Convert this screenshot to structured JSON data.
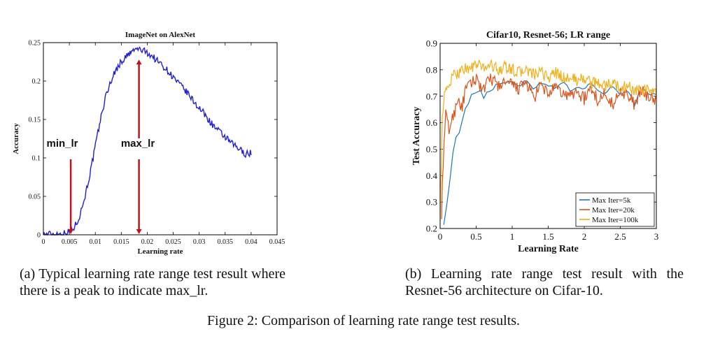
{
  "chart_data": [
    {
      "id": "a",
      "type": "line",
      "title": "ImageNet on AlexNet",
      "xlabel": "Learning rate",
      "ylabel": "Accuracy",
      "xlim": [
        0,
        0.045
      ],
      "ylim": [
        0,
        0.25
      ],
      "xticks": [
        "0",
        "0.005",
        "0.01",
        "0.015",
        "0.02",
        "0.025",
        "0.03",
        "0.035",
        "0.04",
        "0.045"
      ],
      "yticks": [
        "0",
        "0.05",
        "0.1",
        "0.15",
        "0.2",
        "0.25"
      ],
      "grid": false,
      "series": [
        {
          "color": "#1f1fd0",
          "x": [
            0,
            0.001,
            0.002,
            0.003,
            0.004,
            0.005,
            0.006,
            0.007,
            0.008,
            0.009,
            0.01,
            0.011,
            0.012,
            0.013,
            0.014,
            0.015,
            0.016,
            0.017,
            0.018,
            0.019,
            0.02,
            0.021,
            0.022,
            0.023,
            0.024,
            0.025,
            0.026,
            0.027,
            0.028,
            0.029,
            0.03,
            0.031,
            0.032,
            0.033,
            0.034,
            0.035,
            0.036,
            0.037,
            0.038,
            0.039,
            0.04
          ],
          "y": [
            0,
            0.001,
            0.001,
            0.001,
            0.002,
            0.004,
            0.01,
            0.025,
            0.05,
            0.08,
            0.115,
            0.15,
            0.18,
            0.2,
            0.215,
            0.225,
            0.232,
            0.238,
            0.242,
            0.24,
            0.237,
            0.232,
            0.226,
            0.22,
            0.213,
            0.205,
            0.197,
            0.19,
            0.182,
            0.173,
            0.165,
            0.157,
            0.148,
            0.14,
            0.133,
            0.127,
            0.12,
            0.115,
            0.11,
            0.105,
            0.107
          ]
        }
      ],
      "annotations": [
        {
          "label": "min_lr",
          "x": 0.005,
          "y_from": 0.1,
          "y_to": 0.0
        },
        {
          "label": "max_lr",
          "x": 0.018,
          "y_from": 0.1,
          "y_to": 0.0,
          "up_arrow_from": 0.1,
          "up_arrow_to": 0.228
        }
      ],
      "annotation_color": "#c0141b"
    },
    {
      "id": "b",
      "type": "line",
      "title": "Cifar10, Resnet-56; LR range",
      "xlabel": "Learning Rate",
      "ylabel": "Test Accuracy",
      "xlim": [
        0,
        3
      ],
      "ylim": [
        0.2,
        0.9
      ],
      "xticks": [
        "0",
        "0.5",
        "1",
        "1.5",
        "2",
        "2.5",
        "3"
      ],
      "yticks": [
        "0.2",
        "0.3",
        "0.4",
        "0.5",
        "0.6",
        "0.7",
        "0.8",
        "0.9"
      ],
      "grid": false,
      "legend_position": "bottom-right",
      "series": [
        {
          "name": "Max Iter=5k",
          "color": "#1f77b4",
          "x": [
            0.05,
            0.1,
            0.15,
            0.2,
            0.25,
            0.3,
            0.35,
            0.4,
            0.45,
            0.5,
            0.55,
            0.6,
            0.65,
            0.7,
            0.8,
            0.9,
            1.0,
            1.1,
            1.2,
            1.3,
            1.4,
            1.5,
            1.6,
            1.7,
            1.8,
            1.9,
            2.0,
            2.1,
            2.2,
            2.3,
            2.4,
            2.5,
            2.6,
            2.7,
            2.8,
            2.9,
            3.0
          ],
          "y": [
            0.22,
            0.3,
            0.42,
            0.54,
            0.55,
            0.6,
            0.65,
            0.67,
            0.72,
            0.71,
            0.73,
            0.69,
            0.72,
            0.72,
            0.75,
            0.75,
            0.76,
            0.74,
            0.76,
            0.73,
            0.75,
            0.74,
            0.73,
            0.76,
            0.72,
            0.74,
            0.73,
            0.75,
            0.72,
            0.71,
            0.74,
            0.71,
            0.72,
            0.67,
            0.73,
            0.7,
            0.71
          ]
        },
        {
          "name": "Max Iter=20k",
          "color": "#d95319",
          "x": [
            0.02,
            0.05,
            0.08,
            0.1,
            0.13,
            0.15,
            0.2,
            0.25,
            0.3,
            0.35,
            0.4,
            0.45,
            0.5,
            0.6,
            0.7,
            0.8,
            0.9,
            1.0,
            1.1,
            1.2,
            1.3,
            1.4,
            1.5,
            1.6,
            1.7,
            1.8,
            1.9,
            2.0,
            2.1,
            2.2,
            2.3,
            2.4,
            2.5,
            2.6,
            2.7,
            2.8,
            2.9,
            3.0
          ],
          "y": [
            0.26,
            0.5,
            0.64,
            0.6,
            0.57,
            0.6,
            0.64,
            0.7,
            0.65,
            0.72,
            0.74,
            0.75,
            0.77,
            0.72,
            0.77,
            0.74,
            0.75,
            0.74,
            0.73,
            0.75,
            0.69,
            0.74,
            0.71,
            0.73,
            0.71,
            0.7,
            0.72,
            0.69,
            0.73,
            0.68,
            0.72,
            0.66,
            0.73,
            0.7,
            0.67,
            0.72,
            0.7,
            0.68
          ]
        },
        {
          "name": "Max Iter=100k",
          "color": "#edb120",
          "x": [
            0.0,
            0.03,
            0.06,
            0.1,
            0.15,
            0.2,
            0.25,
            0.3,
            0.35,
            0.4,
            0.5,
            0.6,
            0.7,
            0.8,
            0.9,
            1.0,
            1.1,
            1.2,
            1.3,
            1.4,
            1.5,
            1.6,
            1.7,
            1.8,
            1.9,
            2.0,
            2.1,
            2.2,
            2.3,
            2.4,
            2.5,
            2.6,
            2.7,
            2.8,
            2.9,
            3.0
          ],
          "y": [
            0.25,
            0.62,
            0.7,
            0.73,
            0.76,
            0.78,
            0.79,
            0.8,
            0.81,
            0.8,
            0.82,
            0.81,
            0.82,
            0.8,
            0.81,
            0.8,
            0.79,
            0.8,
            0.78,
            0.79,
            0.77,
            0.79,
            0.77,
            0.77,
            0.76,
            0.77,
            0.75,
            0.75,
            0.74,
            0.75,
            0.73,
            0.74,
            0.72,
            0.72,
            0.72,
            0.71
          ]
        }
      ]
    }
  ],
  "captions": {
    "a": "(a) Typical learning rate range test result where there is a peak to indicate max_lr.",
    "b": "(b) Learning rate range test result with the Resnet-56 architecture on Cifar-10.",
    "figure": "Figure 2: Comparison of learning rate range test results."
  }
}
